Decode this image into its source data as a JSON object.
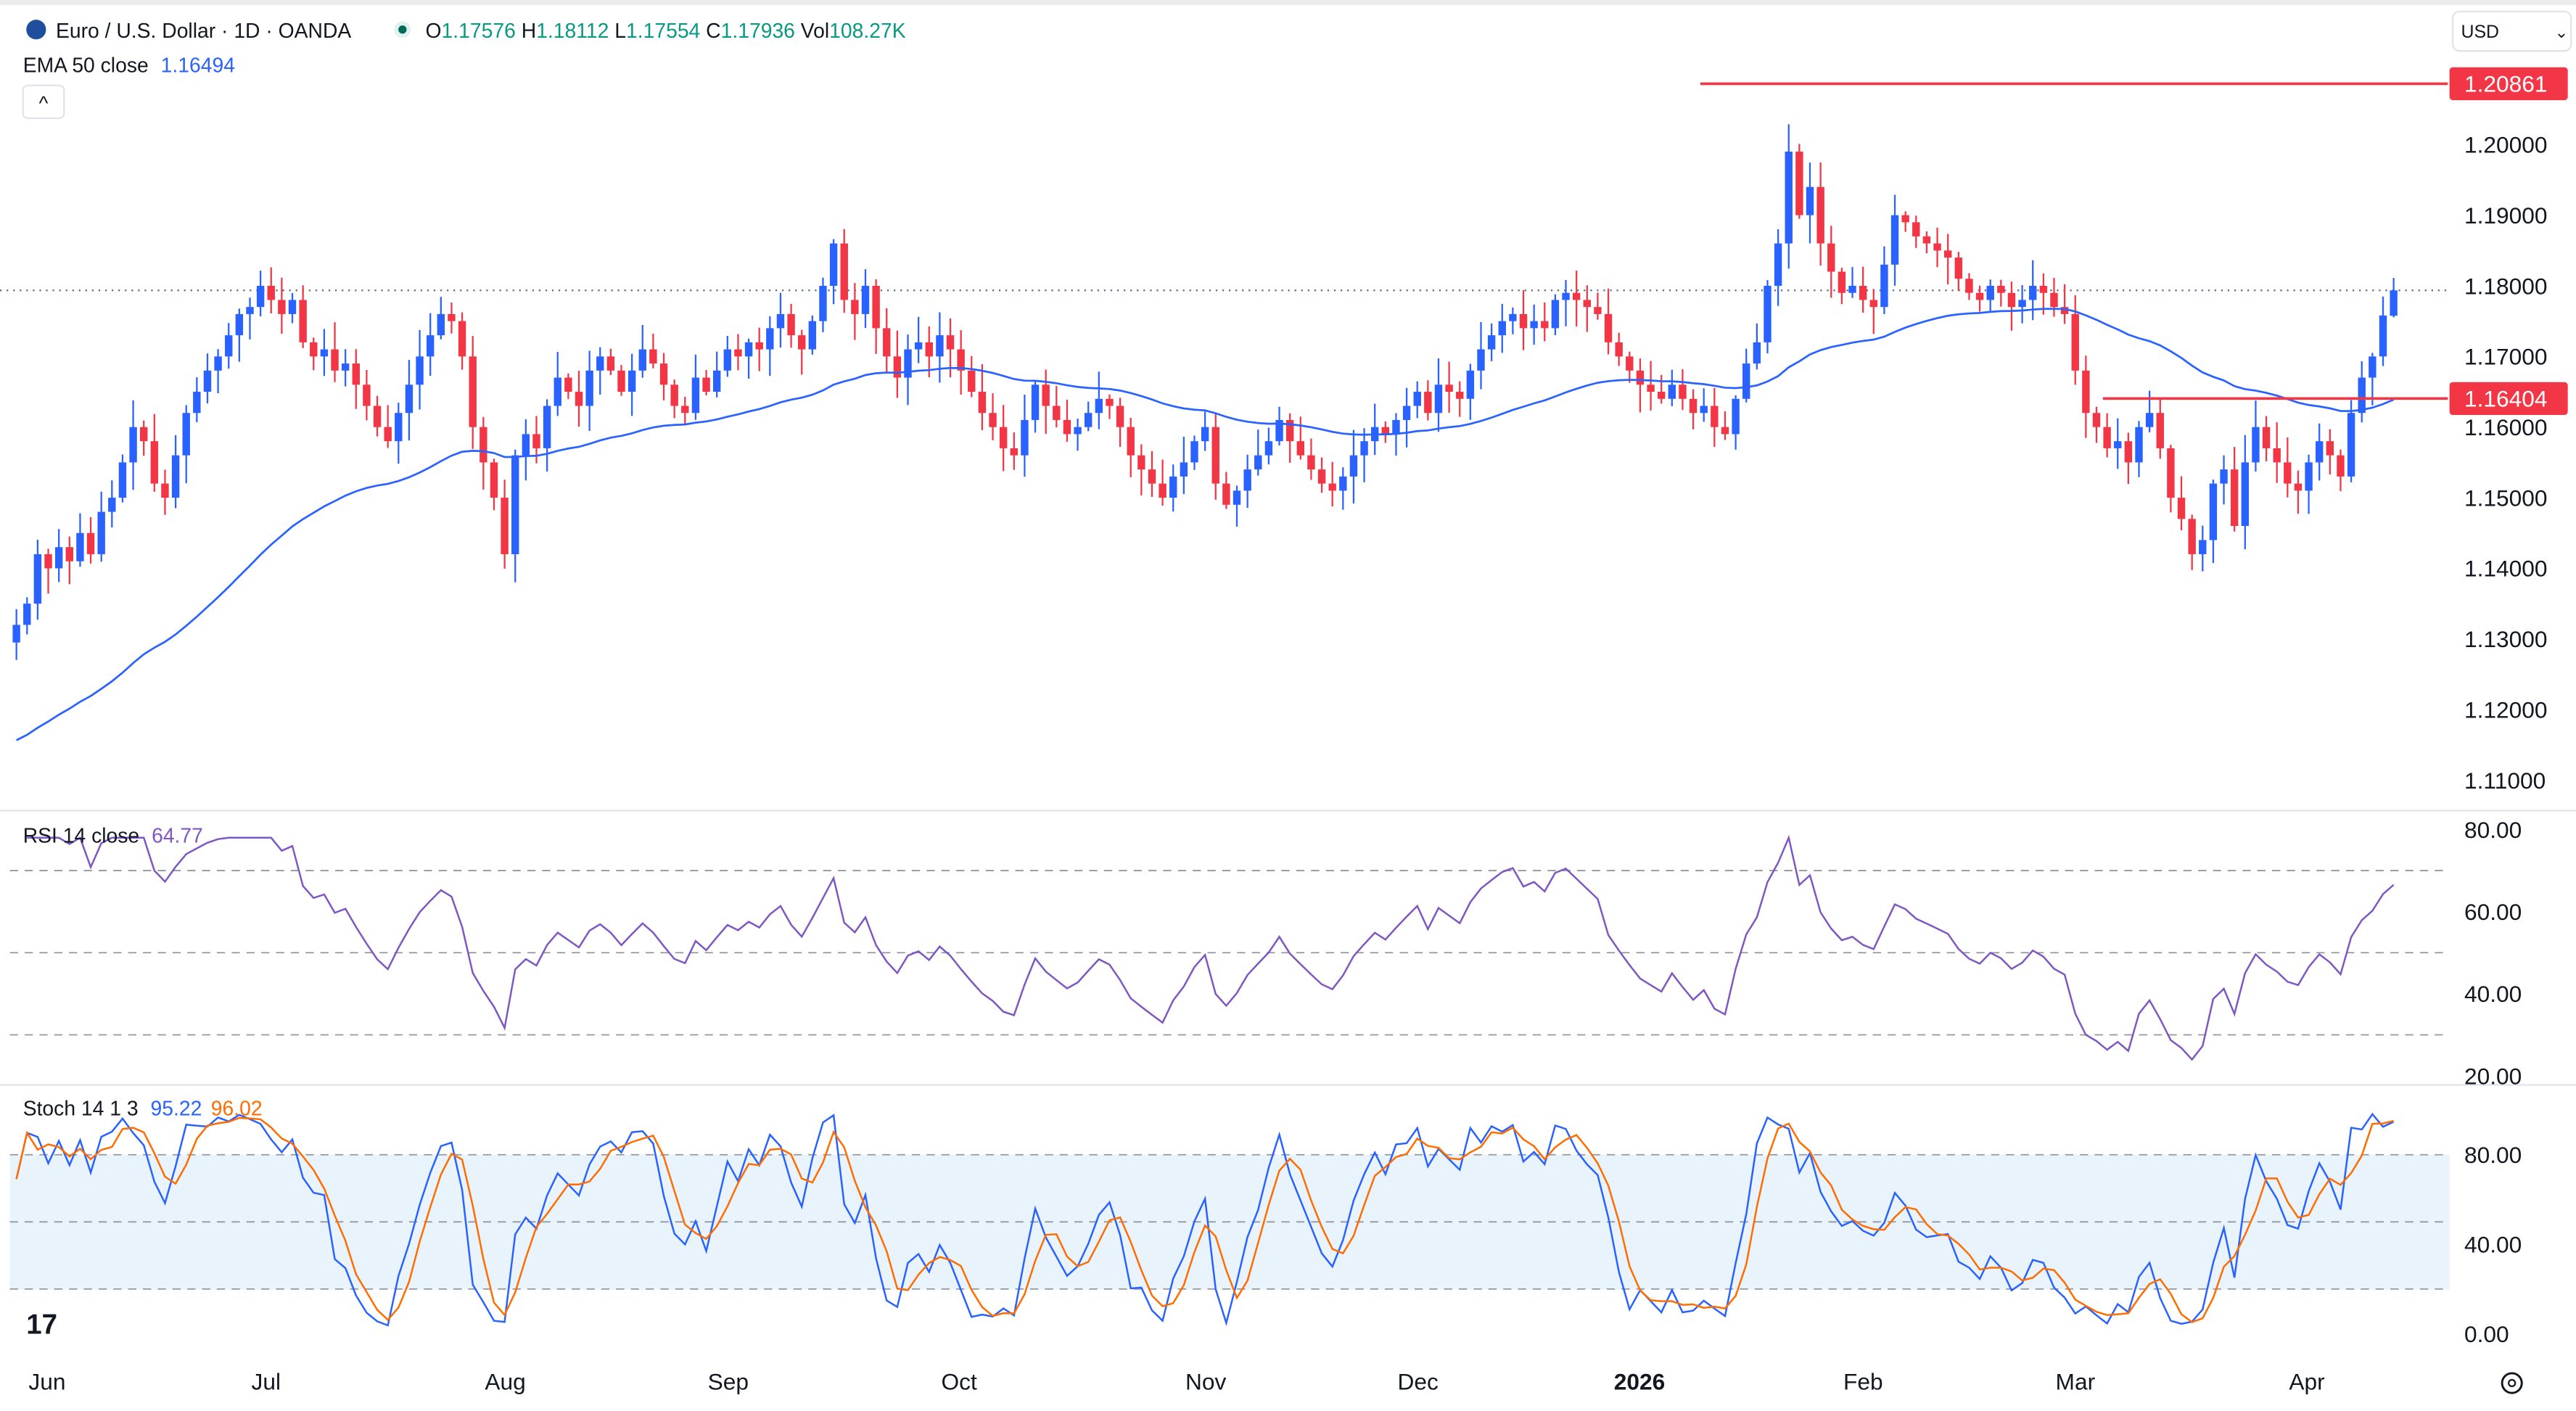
{
  "header": {
    "symbol": "Euro / U.S. Dollar · 1D · OANDA",
    "o_label": "O",
    "o": "1.17576",
    "h_label": "H",
    "h": "1.18112",
    "l_label": "L",
    "l": "1.17554",
    "c_label": "C",
    "c": "1.17936",
    "vol_label": "Vol",
    "vol": "108.27K",
    "ema_label": "EMA 50 close",
    "ema_value": "1.16494",
    "currency": "USD",
    "collapse": "^"
  },
  "colors": {
    "up": "#2962ff",
    "down": "#f23645",
    "ema": "#2962ff",
    "rsi": "#7e57c2",
    "stoch_k": "#2962ff",
    "stoch_d": "#ff6d00",
    "level": "#f23645",
    "value_green": "#089981"
  },
  "chart_data": {
    "type": "candlestick",
    "title": "Euro / U.S. Dollar · 1D · OANDA",
    "ylim": [
      1.105,
      1.213
    ],
    "yticks": [
      "1.20000",
      "1.19000",
      "1.18000",
      "1.17000",
      "1.16000",
      "1.15000",
      "1.14000",
      "1.13000",
      "1.12000",
      "1.11000"
    ],
    "ytick_values": [
      1.2,
      1.19,
      1.18,
      1.17,
      1.16,
      1.15,
      1.14,
      1.13,
      1.12,
      1.11
    ],
    "xticks": [
      {
        "label": "Jun",
        "index": 3
      },
      {
        "label": "Jul",
        "index": 24
      },
      {
        "label": "Aug",
        "index": 46
      },
      {
        "label": "Sep",
        "index": 67
      },
      {
        "label": "Oct",
        "index": 89
      },
      {
        "label": "Nov",
        "index": 112
      },
      {
        "label": "Dec",
        "index": 132
      },
      {
        "label": "2026",
        "index": 153
      },
      {
        "label": "Feb",
        "index": 174
      },
      {
        "label": "Mar",
        "index": 194
      },
      {
        "label": "Apr",
        "index": 216
      }
    ],
    "first_open": 1.1295,
    "closes": [
      1.132,
      1.135,
      1.142,
      1.14,
      1.143,
      1.141,
      1.145,
      1.142,
      1.148,
      1.15,
      1.155,
      1.16,
      1.158,
      1.152,
      1.15,
      1.156,
      1.162,
      1.165,
      1.168,
      1.17,
      1.173,
      1.176,
      1.177,
      1.18,
      1.178,
      1.176,
      1.178,
      1.172,
      1.17,
      1.171,
      1.168,
      1.169,
      1.166,
      1.163,
      1.16,
      1.158,
      1.162,
      1.166,
      1.17,
      1.173,
      1.176,
      1.175,
      1.17,
      1.16,
      1.155,
      1.15,
      1.142,
      1.156,
      1.159,
      1.157,
      1.163,
      1.167,
      1.165,
      1.163,
      1.168,
      1.17,
      1.168,
      1.165,
      1.168,
      1.171,
      1.169,
      1.166,
      1.163,
      1.162,
      1.167,
      1.165,
      1.168,
      1.171,
      1.17,
      1.172,
      1.171,
      1.174,
      1.176,
      1.173,
      1.171,
      1.175,
      1.18,
      1.186,
      1.178,
      1.176,
      1.18,
      1.174,
      1.17,
      1.167,
      1.171,
      1.172,
      1.17,
      1.173,
      1.171,
      1.168,
      1.165,
      1.162,
      1.16,
      1.157,
      1.156,
      1.161,
      1.166,
      1.163,
      1.161,
      1.159,
      1.16,
      1.162,
      1.164,
      1.163,
      1.16,
      1.156,
      1.154,
      1.152,
      1.15,
      1.153,
      1.155,
      1.158,
      1.16,
      1.152,
      1.149,
      1.151,
      1.154,
      1.156,
      1.158,
      1.161,
      1.158,
      1.156,
      1.154,
      1.152,
      1.151,
      1.153,
      1.156,
      1.158,
      1.16,
      1.159,
      1.161,
      1.163,
      1.165,
      1.162,
      1.166,
      1.165,
      1.164,
      1.168,
      1.171,
      1.173,
      1.175,
      1.176,
      1.174,
      1.175,
      1.174,
      1.178,
      1.179,
      1.178,
      1.177,
      1.176,
      1.172,
      1.17,
      1.168,
      1.166,
      1.165,
      1.164,
      1.166,
      1.164,
      1.162,
      1.163,
      1.16,
      1.159,
      1.164,
      1.169,
      1.172,
      1.18,
      1.186,
      1.199,
      1.19,
      1.194,
      1.186,
      1.182,
      1.179,
      1.18,
      1.178,
      1.177,
      1.183,
      1.19,
      1.189,
      1.187,
      1.186,
      1.185,
      1.184,
      1.181,
      1.179,
      1.178,
      1.18,
      1.179,
      1.177,
      1.178,
      1.18,
      1.179,
      1.177,
      1.176,
      1.168,
      1.162,
      1.16,
      1.157,
      1.158,
      1.155,
      1.16,
      1.162,
      1.157,
      1.15,
      1.147,
      1.142,
      1.144,
      1.152,
      1.154,
      1.146,
      1.155,
      1.16,
      1.157,
      1.155,
      1.152,
      1.151,
      1.155,
      1.158,
      1.156,
      1.153,
      1.162,
      1.167,
      1.17,
      1.1758,
      1.17936
    ],
    "ema": {
      "label": "EMA 50 close",
      "period": 50,
      "last": 1.16494
    },
    "levels": [
      {
        "label": "1.20861",
        "value": 1.20861
      },
      {
        "label": "1.16404",
        "value": 1.16404
      }
    ],
    "last_price": 1.17936,
    "rsi": {
      "label": "RSI 14 close",
      "value": "64.77",
      "period": 14,
      "ylim": [
        20,
        80
      ],
      "yticks": [
        "80.00",
        "60.00",
        "40.00",
        "20.00"
      ],
      "tick_values": [
        80,
        60,
        40,
        20
      ],
      "bands": [
        70,
        50,
        30
      ]
    },
    "stoch": {
      "label": "Stoch 14 1 3",
      "k": "95.22",
      "d": "96.02",
      "ylim": [
        0,
        100
      ],
      "yticks": [
        "80.00",
        "40.00",
        "0.00"
      ],
      "tick_values": [
        80,
        40,
        0
      ],
      "bands": [
        80,
        50,
        20
      ]
    }
  }
}
